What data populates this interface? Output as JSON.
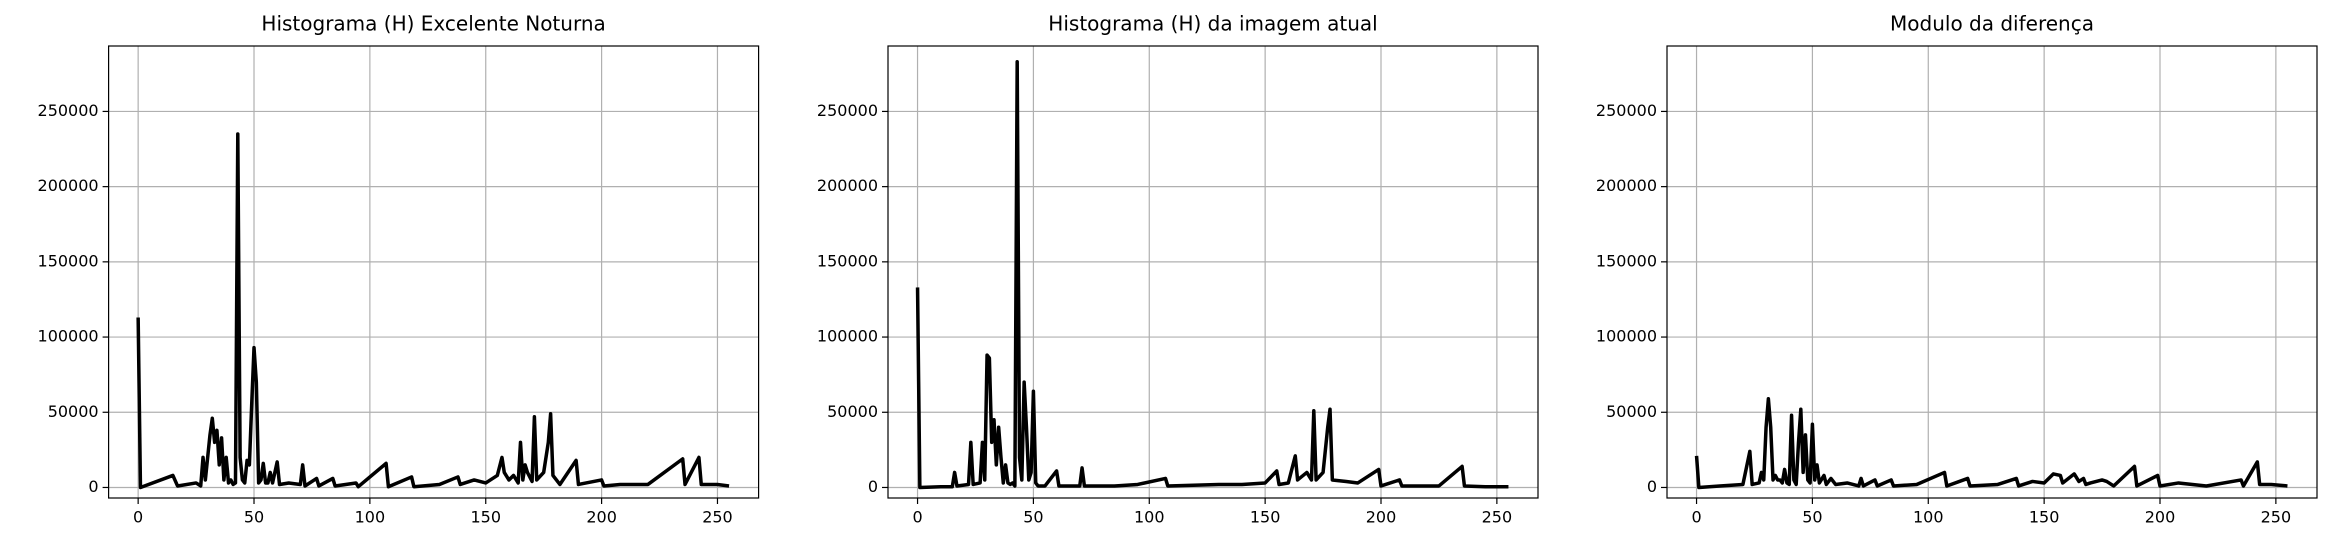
{
  "chart_data": [
    {
      "type": "line",
      "title": "Histograma (H) Excelente Noturna",
      "color": "#000000",
      "x": [
        0,
        1,
        15,
        17,
        25,
        27,
        28,
        29,
        30,
        31,
        32,
        33,
        34,
        35,
        36,
        37,
        38,
        39,
        40,
        41,
        42,
        43,
        44,
        45,
        46,
        47,
        48,
        49,
        50,
        51,
        52,
        53,
        54,
        55,
        56,
        57,
        58,
        60,
        61,
        65,
        70,
        71,
        72,
        77,
        78,
        84,
        85,
        94,
        95,
        107,
        108,
        118,
        119,
        130,
        138,
        139,
        145,
        150,
        155,
        157,
        158,
        160,
        162,
        164,
        165,
        166,
        167,
        168,
        170,
        171,
        172,
        175,
        177,
        178,
        179,
        182,
        189,
        190,
        200,
        201,
        208,
        220,
        235,
        236,
        242,
        243,
        250,
        255
      ],
      "values": [
        113000,
        0,
        8000,
        1000,
        3000,
        1000,
        20000,
        5000,
        20000,
        35000,
        46000,
        30000,
        38000,
        15000,
        33000,
        5000,
        20000,
        3000,
        5000,
        2000,
        3000,
        235000,
        20000,
        5000,
        3000,
        18000,
        15000,
        55000,
        93000,
        70000,
        3000,
        5000,
        16000,
        3000,
        3000,
        10000,
        3000,
        17000,
        2000,
        3000,
        2000,
        15000,
        1000,
        6000,
        1000,
        6000,
        1000,
        3000,
        500,
        16000,
        500,
        7000,
        500,
        2000,
        7000,
        2000,
        5000,
        3000,
        8000,
        20000,
        10000,
        5000,
        8000,
        3000,
        30000,
        5000,
        15000,
        10000,
        4000,
        47000,
        5000,
        10000,
        30000,
        49000,
        8000,
        2000,
        18000,
        2000,
        5000,
        1000,
        2000,
        2000,
        19000,
        2000,
        20000,
        2000,
        2000,
        1000
      ],
      "xlim": [
        -12.75,
        267.75
      ],
      "xticks": [
        0,
        50,
        100,
        150,
        200,
        250
      ],
      "ylim": [
        -7000,
        293500
      ],
      "yticks": [
        0,
        50000,
        100000,
        150000,
        200000,
        250000
      ],
      "grid": true
    },
    {
      "type": "line",
      "title": "Histograma (H) da imagem atual",
      "color": "#000000",
      "x": [
        0,
        1,
        10,
        15,
        16,
        17,
        22,
        23,
        24,
        27,
        28,
        29,
        30,
        31,
        32,
        33,
        34,
        35,
        36,
        37,
        38,
        39,
        40,
        41,
        42,
        43,
        44,
        45,
        46,
        47,
        48,
        49,
        50,
        51,
        52,
        55,
        60,
        61,
        70,
        71,
        72,
        85,
        95,
        107,
        108,
        130,
        140,
        150,
        155,
        156,
        160,
        163,
        164,
        168,
        170,
        171,
        172,
        175,
        177,
        178,
        179,
        185,
        190,
        199,
        200,
        208,
        209,
        225,
        235,
        236,
        245,
        255
      ],
      "values": [
        133000,
        0,
        500,
        500,
        10000,
        1000,
        2000,
        30000,
        2000,
        3000,
        30000,
        5000,
        88000,
        86000,
        30000,
        45000,
        15000,
        40000,
        20000,
        3000,
        15000,
        3000,
        2000,
        3000,
        1000,
        283000,
        20000,
        5000,
        70000,
        40000,
        5000,
        10000,
        64000,
        3000,
        1000,
        1000,
        11000,
        1000,
        1000,
        13000,
        1000,
        1000,
        2000,
        6000,
        1000,
        2000,
        2000,
        3000,
        11000,
        2000,
        3000,
        21000,
        5000,
        10000,
        5000,
        51000,
        5000,
        10000,
        40000,
        52000,
        5000,
        4000,
        3000,
        12000,
        1000,
        5000,
        1000,
        1000,
        14000,
        1000,
        500,
        500
      ],
      "xlim": [
        -12.75,
        267.75
      ],
      "xticks": [
        0,
        50,
        100,
        150,
        200,
        250
      ],
      "ylim": [
        -7000,
        293500
      ],
      "yticks": [
        0,
        50000,
        100000,
        150000,
        200000,
        250000
      ],
      "grid": true
    },
    {
      "type": "line",
      "title": "Modulo da diferença",
      "color": "#000000",
      "x": [
        0,
        1,
        10,
        20,
        23,
        24,
        27,
        28,
        29,
        30,
        31,
        32,
        33,
        34,
        35,
        36,
        37,
        38,
        39,
        40,
        41,
        42,
        43,
        44,
        45,
        46,
        47,
        48,
        49,
        50,
        51,
        52,
        53,
        55,
        56,
        58,
        60,
        65,
        70,
        71,
        72,
        77,
        78,
        84,
        85,
        95,
        107,
        108,
        117,
        118,
        130,
        138,
        139,
        145,
        150,
        154,
        157,
        158,
        163,
        165,
        167,
        168,
        170,
        175,
        177,
        180,
        189,
        190,
        199,
        200,
        208,
        220,
        235,
        236,
        242,
        243,
        248,
        255
      ],
      "values": [
        21000,
        0,
        1000,
        2000,
        24000,
        2000,
        3000,
        10000,
        5000,
        40000,
        59000,
        40000,
        5000,
        8000,
        5000,
        5000,
        3000,
        12000,
        3000,
        2000,
        48000,
        5000,
        2000,
        30000,
        52000,
        10000,
        35000,
        5000,
        3000,
        42000,
        5000,
        15000,
        3000,
        8000,
        2000,
        6000,
        2000,
        3000,
        1000,
        6000,
        1000,
        5000,
        1000,
        5000,
        1000,
        2000,
        10000,
        1000,
        6000,
        1000,
        2000,
        6000,
        1000,
        4000,
        3000,
        9000,
        8000,
        3000,
        9000,
        4000,
        6000,
        2000,
        3000,
        5000,
        4000,
        1000,
        14000,
        1000,
        8000,
        1000,
        3000,
        1000,
        5000,
        1000,
        17000,
        2000,
        2000,
        1000
      ],
      "xlim": [
        -12.75,
        267.75
      ],
      "xticks": [
        0,
        50,
        100,
        150,
        200,
        250
      ],
      "ylim": [
        -7000,
        293500
      ],
      "yticks": [
        0,
        50000,
        100000,
        150000,
        200000,
        250000
      ],
      "grid": true
    }
  ]
}
